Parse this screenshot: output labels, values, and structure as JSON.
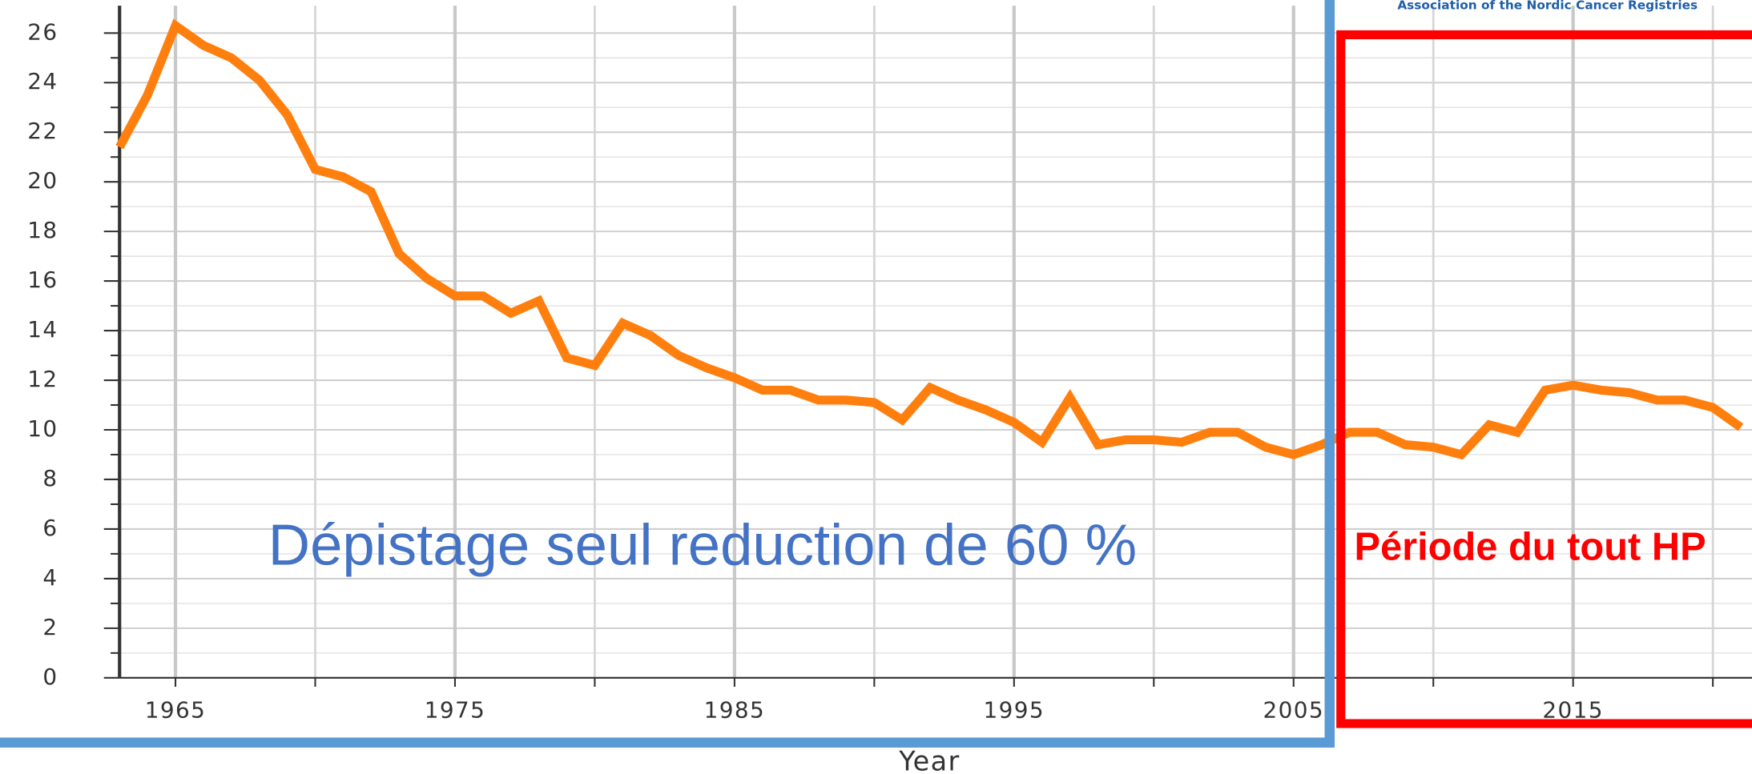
{
  "chart_data": {
    "type": "line",
    "source": "Association of the Nordic Cancer Registries",
    "xlabel": "Year",
    "annotations": [
      "Dépistage seul reduction de 60 %",
      "Période du tout HP"
    ],
    "x": [
      1963,
      1964,
      1965,
      1966,
      1967,
      1968,
      1969,
      1970,
      1971,
      1972,
      1973,
      1974,
      1975,
      1976,
      1977,
      1978,
      1979,
      1980,
      1981,
      1982,
      1983,
      1984,
      1985,
      1986,
      1987,
      1988,
      1989,
      1990,
      1991,
      1992,
      1993,
      1994,
      1995,
      1996,
      1997,
      1998,
      1999,
      2000,
      2001,
      2002,
      2003,
      2004,
      2005,
      2006,
      2007,
      2008,
      2009,
      2010,
      2011,
      2012,
      2013,
      2014,
      2015,
      2016,
      2017,
      2018,
      2019,
      2020,
      2021
    ],
    "series": [
      {
        "color": "#ff7f0e",
        "values": [
          21.4,
          23.5,
          26.3,
          25.5,
          25.0,
          24.1,
          22.7,
          20.5,
          20.2,
          19.6,
          17.1,
          16.1,
          15.4,
          15.4,
          14.7,
          15.2,
          12.9,
          12.6,
          14.3,
          13.8,
          13.0,
          12.5,
          12.1,
          11.6,
          11.6,
          11.2,
          11.2,
          11.1,
          10.4,
          11.7,
          11.2,
          10.8,
          10.3,
          9.5,
          11.3,
          9.4,
          9.6,
          9.6,
          9.5,
          9.9,
          9.9,
          9.3,
          9.0,
          9.4,
          9.9,
          9.9,
          9.4,
          9.3,
          9.0,
          10.2,
          9.9,
          11.6,
          11.8,
          11.6,
          11.5,
          11.2,
          11.2,
          10.9,
          10.1
        ]
      }
    ],
    "xlim": [
      1963,
      2021.4
    ],
    "ylim": [
      0,
      27.1
    ],
    "xticks": [
      1965,
      1975,
      1985,
      1995,
      2005,
      2015
    ],
    "xminor": [
      1970,
      1980,
      1990,
      2000,
      2010,
      2020
    ],
    "yticks": [
      0,
      2,
      4,
      6,
      8,
      10,
      12,
      14,
      16,
      18,
      20,
      22,
      24,
      26
    ],
    "yminor": [
      1,
      3,
      5,
      7,
      9,
      11,
      13,
      15,
      17,
      19,
      21,
      23,
      25
    ],
    "grid": true
  }
}
